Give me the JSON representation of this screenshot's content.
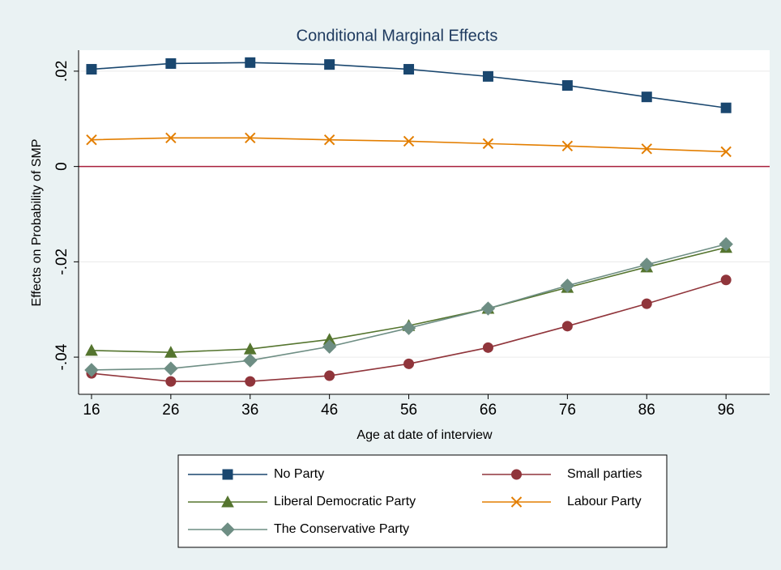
{
  "chart_data": {
    "type": "line",
    "title": "Conditional Marginal Effects",
    "xlabel": "Age at date of interview",
    "ylabel": "Effects on Probability of SMP",
    "x": [
      16,
      26,
      36,
      46,
      56,
      66,
      76,
      86,
      96
    ],
    "xlim": [
      14.37,
      101.5
    ],
    "xticks": [
      16,
      26,
      36,
      46,
      56,
      66,
      76,
      86,
      96
    ],
    "ylim": [
      -0.0478,
      0.0244
    ],
    "yticks": [
      {
        "value": 0.02,
        "label": ".02"
      },
      0,
      {
        "value": -0.02,
        "label": "-.02"
      },
      {
        "value": -0.04,
        "label": "-.04"
      }
    ],
    "grid": true,
    "yline": {
      "value": 0,
      "color": "#a8203c"
    },
    "legend": "bottom",
    "series": [
      {
        "name": "No Party",
        "color": "#1a476f",
        "marker": "square",
        "values": [
          0.0204,
          0.0216,
          0.0218,
          0.0214,
          0.0204,
          0.0189,
          0.017,
          0.0146,
          0.0123
        ]
      },
      {
        "name": "Small parties",
        "color": "#90353b",
        "marker": "circle",
        "values": [
          -0.0434,
          -0.0451,
          -0.0451,
          -0.0439,
          -0.0414,
          -0.038,
          -0.0335,
          -0.0288,
          -0.0238
        ]
      },
      {
        "name": "Liberal Democratic Party",
        "color": "#55752f",
        "marker": "triangle",
        "values": [
          -0.0386,
          -0.039,
          -0.0383,
          -0.0363,
          -0.0334,
          -0.0298,
          -0.0254,
          -0.0211,
          -0.017
        ]
      },
      {
        "name": "Labour Party",
        "color": "#e37e00",
        "marker": "x",
        "values": [
          0.0056,
          0.006,
          0.006,
          0.0056,
          0.0053,
          0.0048,
          0.0043,
          0.0037,
          0.0031
        ]
      },
      {
        "name": "The Conservative Party",
        "color": "#6e8e84",
        "marker": "diamond",
        "values": [
          -0.0427,
          -0.0424,
          -0.0407,
          -0.0378,
          -0.0339,
          -0.0298,
          -0.025,
          -0.0206,
          -0.0163
        ]
      }
    ]
  }
}
